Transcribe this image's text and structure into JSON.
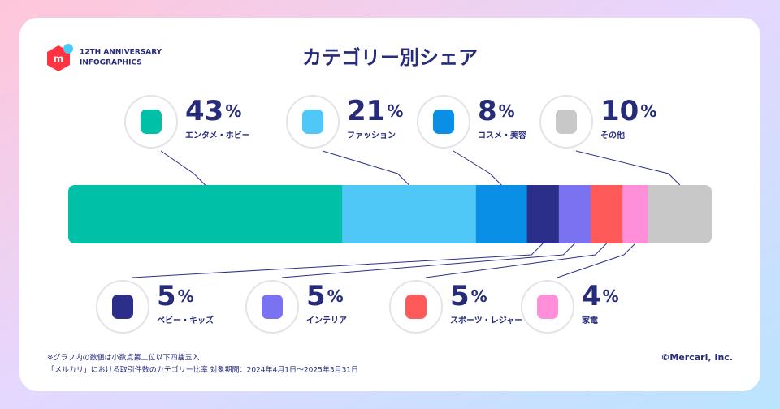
{
  "chart_data": {
    "type": "stacked-share-bar",
    "title": "カテゴリー別シェア",
    "brand_line1": "12TH ANNIVERSARY",
    "brand_line2": "INFOGRAPHICS",
    "unit": "%",
    "categories": [
      "エンタメ・ホビー",
      "ファッション",
      "コスメ・美容",
      "ベビー・キッズ",
      "インテリア",
      "スポーツ・レジャー",
      "家電",
      "その他"
    ],
    "values": [
      43,
      21,
      8,
      5,
      5,
      5,
      4,
      10
    ],
    "colors": [
      "#00c0a8",
      "#4fc8f8",
      "#0a8fe6",
      "#2b2f8a",
      "#7b72f2",
      "#ff5a5a",
      "#ff8fd8",
      "#c8c8c8"
    ],
    "notes": [
      "※グラフ内の数値は小数点第二位以下四捨五入",
      "「メルカリ」における取引件数のカテゴリー比率 対象期間：2024年4月1日〜2025年3月31日"
    ],
    "copyright": "©Mercari, Inc."
  }
}
